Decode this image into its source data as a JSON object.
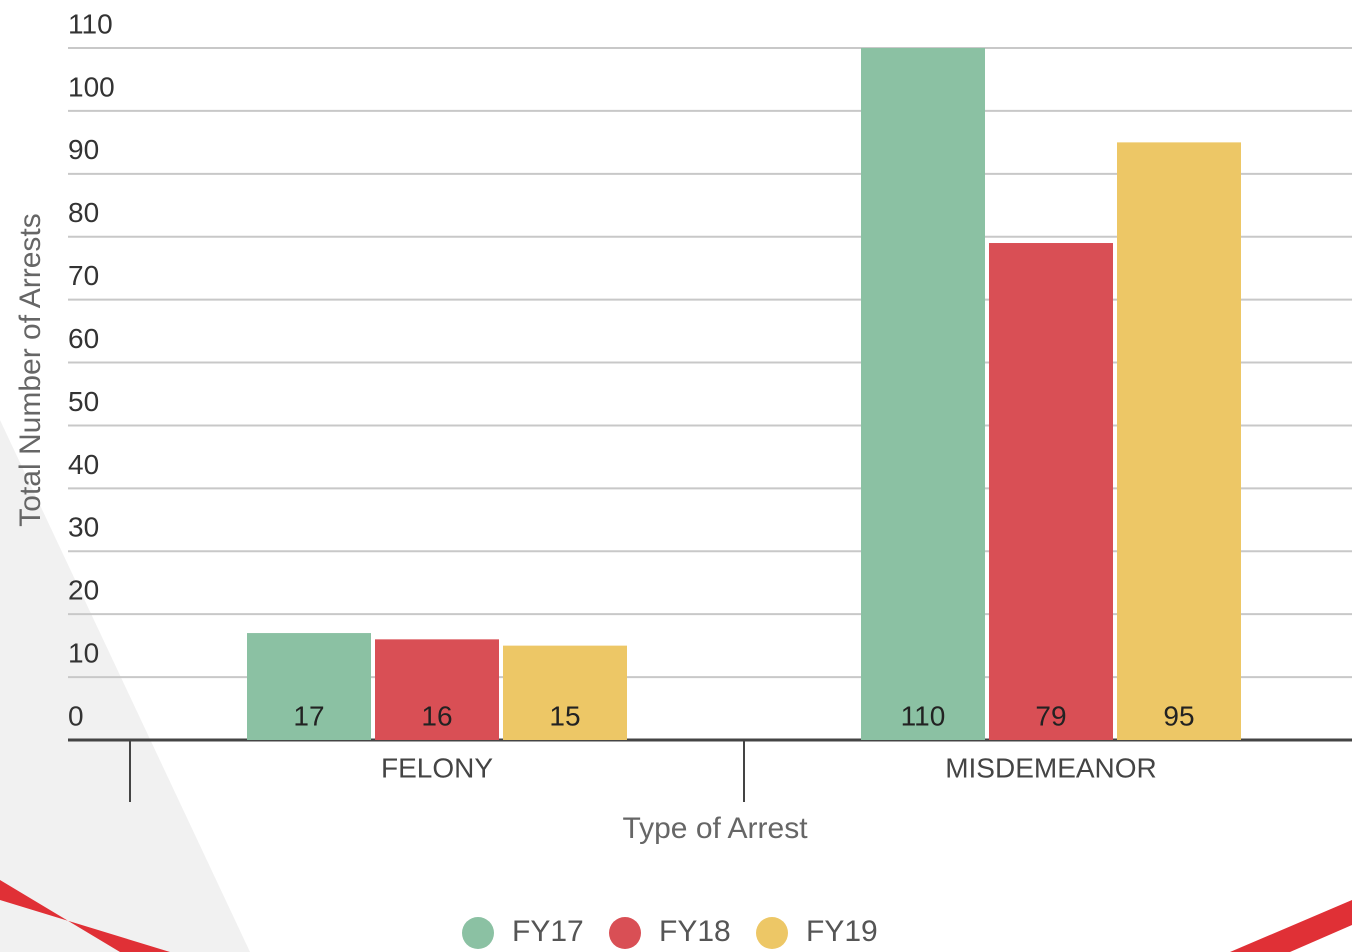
{
  "chart_data": {
    "type": "bar",
    "x_label": "Type of Arrest",
    "y_label": "Total Number of Arrests",
    "categories": [
      "FELONY",
      "MISDEMEANOR"
    ],
    "series": [
      {
        "name": "FY17",
        "color": "#8bc1a3",
        "values": [
          17,
          110
        ]
      },
      {
        "name": "FY18",
        "color": "#d94f55",
        "values": [
          16,
          79
        ]
      },
      {
        "name": "FY19",
        "color": "#edc766",
        "values": [
          15,
          95
        ]
      }
    ],
    "ylim": [
      0,
      110
    ],
    "yticks": [
      0,
      10,
      20,
      30,
      40,
      50,
      60,
      70,
      80,
      90,
      100,
      110
    ],
    "grid": true,
    "legend": "bottom"
  }
}
